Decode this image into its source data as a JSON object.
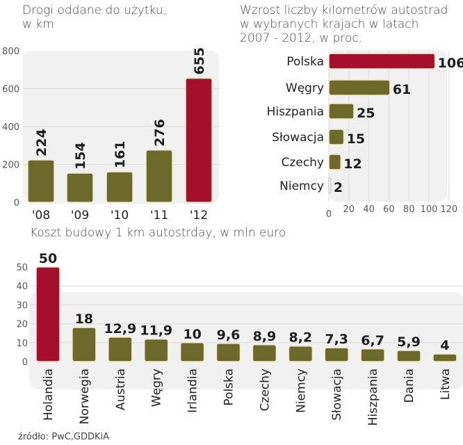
{
  "colors": {
    "olive": "#6b6a2a",
    "highlight": "#a50f2c",
    "bar_stroke": "#f3ecc8",
    "panel": "#f1f1f1",
    "grid": "#dcdcdc"
  },
  "source": "źródło: PwC,GDDKiA",
  "chart_data": [
    {
      "type": "bar",
      "title_lines": [
        "Drogi oddane do użytku,",
        "w km"
      ],
      "categories": [
        "'08",
        "'09",
        "'10",
        "'11",
        "'12"
      ],
      "values": [
        224,
        154,
        161,
        276,
        655
      ],
      "value_labels": [
        "224",
        "154",
        "161",
        "276",
        "655"
      ],
      "highlight": [
        false,
        false,
        false,
        false,
        true
      ],
      "yticks": [
        "0",
        "200",
        "400",
        "600",
        "800"
      ],
      "ytick_values": [
        0,
        200,
        400,
        600,
        800
      ],
      "ylim": [
        0,
        800
      ],
      "grid": true,
      "orientation": "vertical"
    },
    {
      "type": "bar",
      "title_lines": [
        "Wzrost liczby kilometrów autostrad",
        "w wybranych krajach w latach",
        "2007 - 2012, w proc."
      ],
      "categories": [
        "Polska",
        "Węgry",
        "Hiszpania",
        "Słowacja",
        "Czechy",
        "Niemcy"
      ],
      "values": [
        106,
        61,
        25,
        15,
        12,
        2
      ],
      "value_labels": [
        "106",
        "61",
        "25",
        "15",
        "12",
        "2"
      ],
      "highlight": [
        true,
        false,
        false,
        false,
        false,
        false
      ],
      "xticks": [
        "0",
        "20",
        "40",
        "60",
        "80",
        "100",
        "120"
      ],
      "xtick_values": [
        0,
        20,
        40,
        60,
        80,
        100,
        120
      ],
      "xlim": [
        0,
        120
      ],
      "grid": true,
      "orientation": "horizontal"
    },
    {
      "type": "bar",
      "title_lines": [
        "Koszt budowy 1 km autostrday, w mln euro"
      ],
      "categories": [
        "Holandia",
        "Norwegia",
        "Austria",
        "Węgry",
        "Irlandia",
        "Polska",
        "Czechy",
        "Niemcy",
        "Słowacja",
        "Hiszpania",
        "Dania",
        "Litwa"
      ],
      "values": [
        50,
        18,
        12.9,
        11.9,
        10,
        9.6,
        8.9,
        8.2,
        7.3,
        6.7,
        5.9,
        4
      ],
      "value_labels": [
        "50",
        "18",
        "12,9",
        "11,9",
        "10",
        "9,6",
        "8,9",
        "8,2",
        "7,3",
        "6,7",
        "5,9",
        "4"
      ],
      "highlight": [
        true,
        false,
        false,
        false,
        false,
        false,
        false,
        false,
        false,
        false,
        false,
        false
      ],
      "yticks": [
        "0",
        "10",
        "20",
        "30",
        "40",
        "50"
      ],
      "ytick_values": [
        0,
        10,
        20,
        30,
        40,
        50
      ],
      "ylim": [
        0,
        50
      ],
      "grid": true,
      "orientation": "vertical"
    }
  ]
}
